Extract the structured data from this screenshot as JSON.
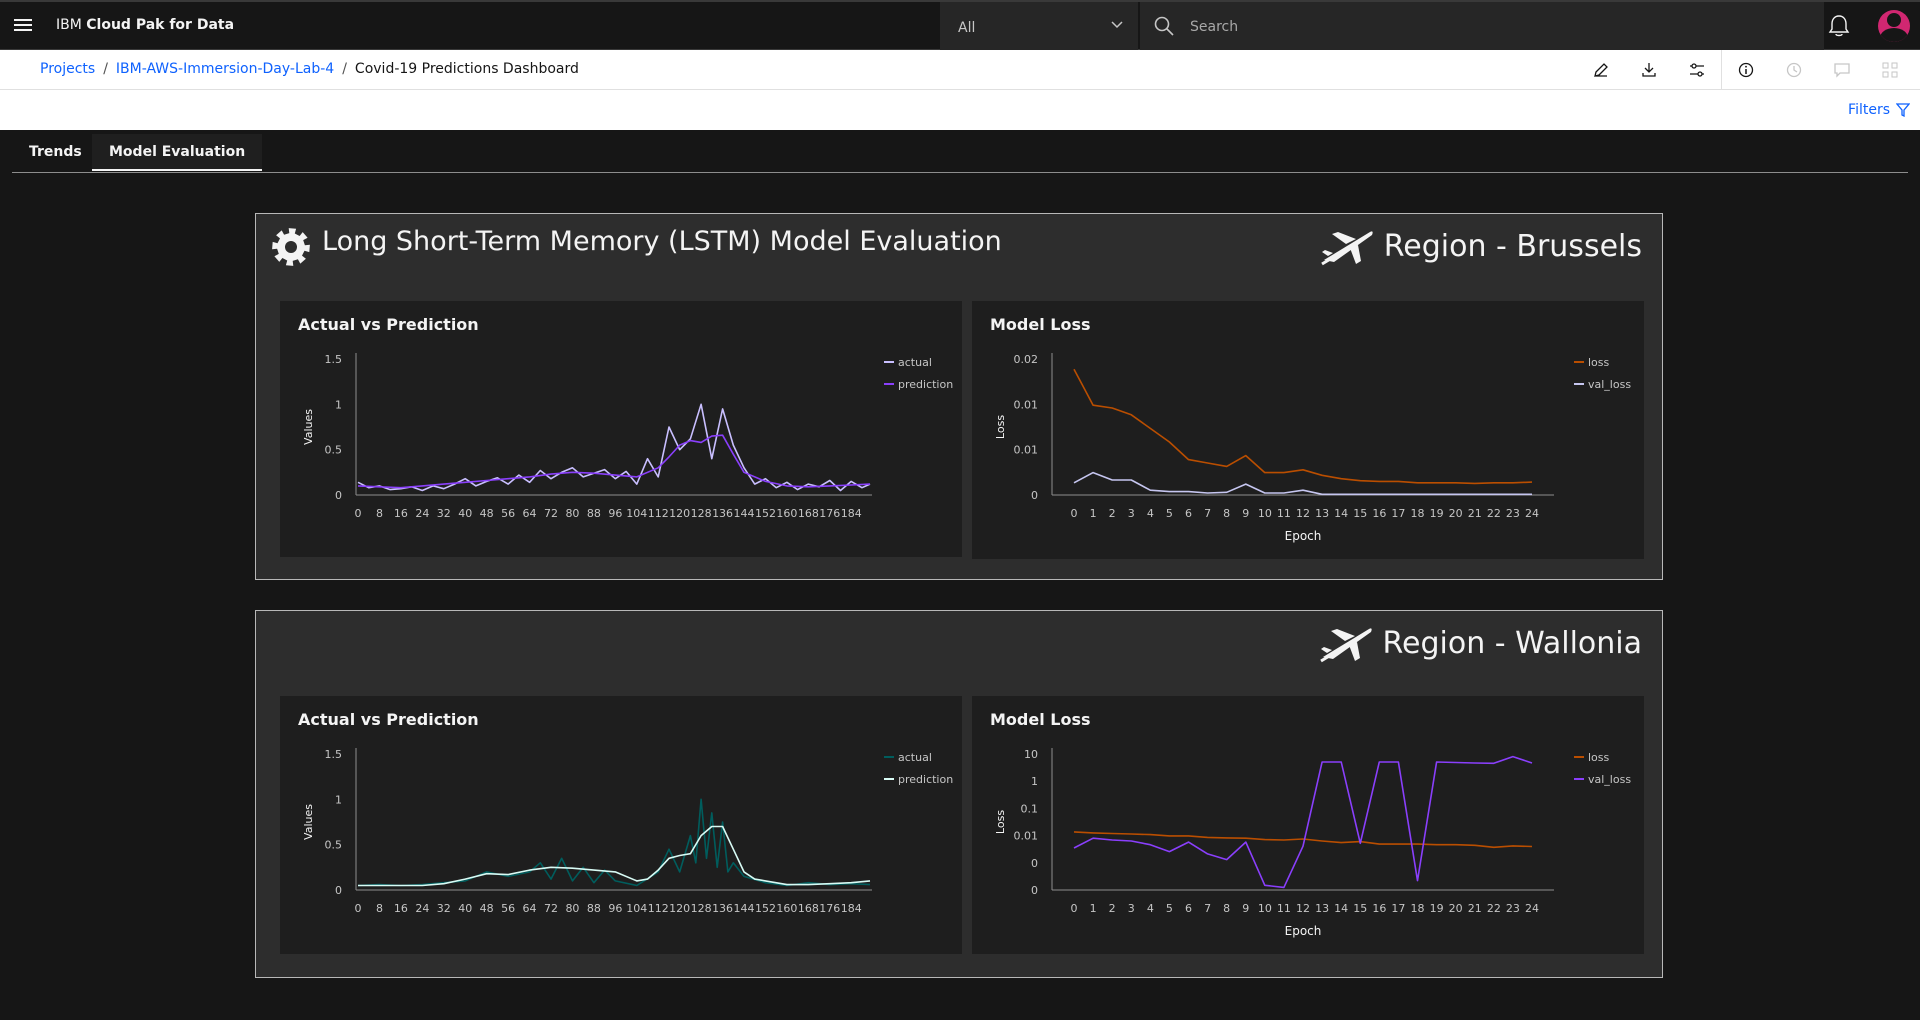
{
  "topbar": {
    "brand_prefix": "IBM",
    "brand_name": "Cloud Pak for Data",
    "scope_value": "All",
    "search_placeholder": "Search"
  },
  "breadcrumb": {
    "items": [
      "Projects",
      "IBM-AWS-Immersion-Day-Lab-4"
    ],
    "current": "Covid-19 Predictions Dashboard"
  },
  "toolbar": {
    "icons": [
      "edit-icon",
      "download-icon",
      "settings-sliders-icon",
      "info-icon",
      "history-icon",
      "comment-icon",
      "widgets-icon"
    ]
  },
  "filters_label": "Filters",
  "tabs": [
    {
      "label": "Trends",
      "active": false
    },
    {
      "label": "Model Evaluation",
      "active": true
    }
  ],
  "panels": [
    {
      "title": "Long Short-Term Memory (LSTM) Model Evaluation",
      "region": "Region - Brussels",
      "actual_card_title": "Actual vs Prediction",
      "loss_card_title": "Model Loss"
    },
    {
      "title": "",
      "region": "Region - Wallonia",
      "actual_card_title": "Actual vs Prediction",
      "loss_card_title": "Model Loss"
    }
  ],
  "chart_data": [
    {
      "type": "line",
      "panel": "Region - Brussels",
      "title": "Actual vs Prediction",
      "xlabel": "",
      "ylabel": "Values",
      "x_ticks": [
        "0",
        "8",
        "16",
        "24",
        "32",
        "40",
        "48",
        "56",
        "64",
        "72",
        "80",
        "88",
        "96",
        "104",
        "112",
        "120",
        "128",
        "136",
        "144",
        "152",
        "160",
        "168",
        "176",
        "184"
      ],
      "y_ticks": [
        "0",
        "0.5",
        "1",
        "1.5"
      ],
      "ylim": [
        0,
        1.5
      ],
      "xlim": [
        0,
        191
      ],
      "legend": "top-right",
      "series": [
        {
          "name": "actual",
          "color": "#c9bfff",
          "x": [
            0,
            4,
            8,
            12,
            16,
            20,
            24,
            28,
            32,
            36,
            40,
            44,
            48,
            52,
            56,
            60,
            64,
            68,
            72,
            76,
            80,
            84,
            88,
            92,
            96,
            100,
            104,
            108,
            112,
            116,
            120,
            124,
            128,
            132,
            136,
            140,
            144,
            148,
            152,
            156,
            160,
            164,
            168,
            172,
            176,
            180,
            184,
            188,
            191
          ],
          "values": [
            0.14,
            0.08,
            0.1,
            0.06,
            0.07,
            0.09,
            0.05,
            0.1,
            0.07,
            0.12,
            0.18,
            0.1,
            0.15,
            0.19,
            0.12,
            0.22,
            0.14,
            0.27,
            0.18,
            0.25,
            0.3,
            0.2,
            0.24,
            0.28,
            0.18,
            0.26,
            0.12,
            0.4,
            0.2,
            0.75,
            0.5,
            0.62,
            1.0,
            0.4,
            0.95,
            0.55,
            0.3,
            0.12,
            0.18,
            0.08,
            0.14,
            0.06,
            0.12,
            0.09,
            0.16,
            0.05,
            0.15,
            0.08,
            0.12
          ]
        },
        {
          "name": "prediction",
          "color": "#8a3ffc",
          "x": [
            0,
            8,
            16,
            24,
            32,
            40,
            48,
            56,
            64,
            72,
            80,
            88,
            96,
            104,
            112,
            116,
            120,
            124,
            128,
            132,
            136,
            140,
            144,
            152,
            160,
            168,
            176,
            184,
            191
          ],
          "values": [
            0.1,
            0.09,
            0.08,
            0.1,
            0.12,
            0.14,
            0.16,
            0.18,
            0.2,
            0.23,
            0.25,
            0.24,
            0.22,
            0.2,
            0.3,
            0.42,
            0.55,
            0.6,
            0.58,
            0.65,
            0.66,
            0.45,
            0.25,
            0.15,
            0.1,
            0.09,
            0.1,
            0.11,
            0.12
          ]
        }
      ]
    },
    {
      "type": "line",
      "panel": "Region - Brussels",
      "title": "Model Loss",
      "xlabel": "Epoch",
      "ylabel": "Loss",
      "x_ticks": [
        "0",
        "1",
        "2",
        "3",
        "4",
        "5",
        "6",
        "7",
        "8",
        "9",
        "10",
        "11",
        "12",
        "13",
        "14",
        "15",
        "16",
        "17",
        "18",
        "19",
        "20",
        "21",
        "22",
        "23",
        "24"
      ],
      "y_ticks": [
        "0",
        "0.01",
        "0.01",
        "0.02"
      ],
      "ylim": [
        0,
        0.02
      ],
      "legend": "top-right",
      "series": [
        {
          "name": "loss",
          "color": "#ba4e00",
          "values": [
            0.0185,
            0.0132,
            0.0128,
            0.0118,
            0.0098,
            0.0078,
            0.0052,
            0.0047,
            0.0042,
            0.0058,
            0.0033,
            0.0033,
            0.0037,
            0.0029,
            0.0024,
            0.0021,
            0.002,
            0.002,
            0.0018,
            0.0018,
            0.0018,
            0.0017,
            0.0018,
            0.0018,
            0.0019
          ]
        },
        {
          "name": "val_loss",
          "color": "#c6c6f0",
          "values": [
            0.0018,
            0.0033,
            0.0022,
            0.0022,
            0.0007,
            0.0005,
            0.0005,
            0.0003,
            0.0004,
            0.0016,
            0.0003,
            0.0003,
            0.0007,
            0.0001,
            0.0001,
            0.0001,
            0.0001,
            0.0001,
            0.0001,
            0.0001,
            0.0001,
            0.0001,
            0.0001,
            0.0001,
            0.0001
          ]
        }
      ]
    },
    {
      "type": "line",
      "panel": "Region - Wallonia",
      "title": "Actual vs Prediction",
      "xlabel": "",
      "ylabel": "Values",
      "x_ticks": [
        "0",
        "8",
        "16",
        "24",
        "32",
        "40",
        "48",
        "56",
        "64",
        "72",
        "80",
        "88",
        "96",
        "104",
        "112",
        "120",
        "128",
        "136",
        "144",
        "152",
        "160",
        "168",
        "176",
        "184"
      ],
      "y_ticks": [
        "0",
        "0.5",
        "1",
        "1.5"
      ],
      "ylim": [
        0,
        1.5
      ],
      "xlim": [
        0,
        191
      ],
      "legend": "top-right",
      "series": [
        {
          "name": "actual",
          "color": "#005d5d",
          "x": [
            0,
            8,
            16,
            24,
            32,
            40,
            48,
            56,
            64,
            68,
            72,
            76,
            80,
            84,
            88,
            92,
            96,
            104,
            112,
            116,
            120,
            124,
            126,
            128,
            130,
            132,
            134,
            136,
            138,
            140,
            144,
            152,
            160,
            168,
            176,
            184,
            191
          ],
          "values": [
            0.05,
            0.06,
            0.05,
            0.06,
            0.08,
            0.1,
            0.2,
            0.15,
            0.2,
            0.3,
            0.12,
            0.35,
            0.1,
            0.25,
            0.08,
            0.22,
            0.1,
            0.05,
            0.2,
            0.45,
            0.2,
            0.6,
            0.3,
            1.0,
            0.35,
            0.85,
            0.25,
            0.75,
            0.2,
            0.3,
            0.15,
            0.08,
            0.05,
            0.08,
            0.06,
            0.07,
            0.06
          ]
        },
        {
          "name": "prediction",
          "color": "#d8fbf5",
          "x": [
            0,
            8,
            16,
            24,
            32,
            40,
            48,
            56,
            64,
            72,
            80,
            88,
            96,
            104,
            108,
            112,
            116,
            120,
            124,
            128,
            132,
            136,
            140,
            144,
            148,
            152,
            160,
            168,
            176,
            184,
            191
          ],
          "values": [
            0.05,
            0.05,
            0.05,
            0.05,
            0.07,
            0.12,
            0.18,
            0.17,
            0.22,
            0.25,
            0.24,
            0.22,
            0.2,
            0.1,
            0.12,
            0.22,
            0.35,
            0.38,
            0.4,
            0.6,
            0.7,
            0.7,
            0.45,
            0.2,
            0.12,
            0.1,
            0.06,
            0.06,
            0.07,
            0.08,
            0.1
          ]
        }
      ]
    },
    {
      "type": "line",
      "panel": "Region - Wallonia",
      "title": "Model Loss",
      "xlabel": "Epoch",
      "ylabel": "Loss",
      "x_ticks": [
        "0",
        "1",
        "2",
        "3",
        "4",
        "5",
        "6",
        "7",
        "8",
        "9",
        "10",
        "11",
        "12",
        "13",
        "14",
        "15",
        "16",
        "17",
        "18",
        "19",
        "20",
        "21",
        "22",
        "23",
        "24"
      ],
      "y_ticks": [
        "0",
        "0",
        "0.01",
        "0.1",
        "1",
        "10"
      ],
      "scale": "log",
      "legend": "top-right",
      "series": [
        {
          "name": "loss",
          "color": "#ba4e00",
          "values": [
            0.012,
            0.011,
            0.0105,
            0.01,
            0.0095,
            0.0085,
            0.0085,
            0.0075,
            0.0072,
            0.007,
            0.0062,
            0.006,
            0.0065,
            0.0055,
            0.0048,
            0.0052,
            0.0042,
            0.0042,
            0.0042,
            0.004,
            0.004,
            0.0038,
            0.0032,
            0.0036,
            0.0034
          ]
        },
        {
          "name": "val_loss",
          "color": "#8a3ffc",
          "values": [
            0.003,
            0.007,
            0.006,
            0.0055,
            0.004,
            0.0022,
            0.005,
            0.0018,
            0.0011,
            0.005,
            0.00012,
            0.0001,
            0.0035,
            5,
            5,
            0.0045,
            5,
            5,
            0.00018,
            5,
            4.8,
            4.6,
            4.5,
            8,
            4.6
          ]
        }
      ]
    }
  ]
}
